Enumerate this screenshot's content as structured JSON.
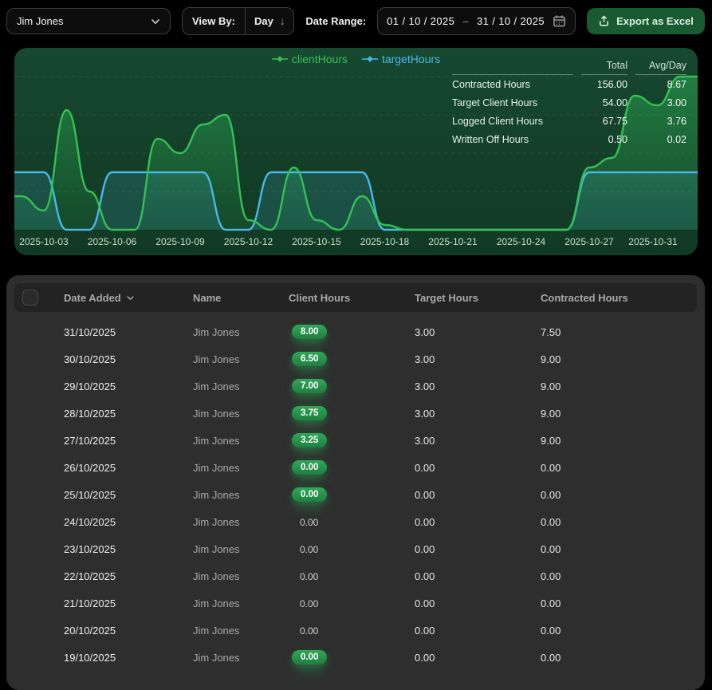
{
  "toolbar": {
    "person_select": {
      "value": "Jim Jones"
    },
    "view_by_label": "View By:",
    "view_by_value": "Day",
    "date_range_label": "Date Range:",
    "date_range_start": "01 / 10 / 2025",
    "date_range_separator": "–",
    "date_range_end": "31 / 10 / 2025",
    "export_button_label": "Export as Excel"
  },
  "colors": {
    "client_hours_green": "#34c155",
    "target_hours_blue": "#49b8e8",
    "chart_panel_green": "#133f28",
    "badge_green": "#2b9d50",
    "export_button_green": "#1a5a32"
  },
  "chart": {
    "stats": {
      "headers": [
        "Total",
        "Avg/Day"
      ],
      "rows": [
        [
          "Contracted Hours",
          "156.00",
          "8.67"
        ],
        [
          "Target Client Hours",
          "54.00",
          "3.00"
        ],
        [
          "Logged Client Hours",
          "67.75",
          "3.76"
        ],
        [
          "Written Off Hours",
          "0.50",
          "0.02"
        ]
      ]
    }
  },
  "chart_data": {
    "type": "area",
    "title": "",
    "x": [
      "2025-10-01",
      "2025-10-02",
      "2025-10-03",
      "2025-10-04",
      "2025-10-05",
      "2025-10-06",
      "2025-10-07",
      "2025-10-08",
      "2025-10-09",
      "2025-10-10",
      "2025-10-11",
      "2025-10-12",
      "2025-10-13",
      "2025-10-14",
      "2025-10-15",
      "2025-10-16",
      "2025-10-17",
      "2025-10-18",
      "2025-10-19",
      "2025-10-20",
      "2025-10-21",
      "2025-10-22",
      "2025-10-23",
      "2025-10-24",
      "2025-10-25",
      "2025-10-26",
      "2025-10-27",
      "2025-10-28",
      "2025-10-29",
      "2025-10-30",
      "2025-10-31"
    ],
    "series": [
      {
        "name": "clientHours",
        "color": "#34c155",
        "values": [
          1.75,
          1.75,
          1.0,
          6.25,
          2.0,
          0,
          0,
          4.75,
          4.0,
          5.5,
          6.0,
          0.5,
          0,
          3.25,
          0.5,
          0,
          1.75,
          0.25,
          0,
          0,
          0,
          0,
          0,
          0,
          0,
          0,
          3.25,
          3.75,
          7.0,
          6.5,
          8.0
        ]
      },
      {
        "name": "targetHours",
        "color": "#49b8e8",
        "values": [
          3,
          3,
          3,
          0,
          0,
          3,
          3,
          3,
          3,
          3,
          0,
          0,
          3,
          3,
          3,
          3,
          3,
          0,
          0,
          0,
          0,
          0,
          0,
          0,
          0,
          0,
          3,
          3,
          3,
          3,
          3
        ]
      }
    ],
    "x_ticks": [
      "2025-10-03",
      "2025-10-06",
      "2025-10-09",
      "2025-10-12",
      "2025-10-15",
      "2025-10-18",
      "2025-10-21",
      "2025-10-24",
      "2025-10-27",
      "2025-10-31"
    ],
    "ylim": [
      0,
      9.5
    ],
    "grid": "dashed-horizontal",
    "legend_position": "top-center"
  },
  "table": {
    "columns": [
      "Date Added",
      "Name",
      "Client Hours",
      "Target Hours",
      "Contracted Hours"
    ],
    "sort_column": "Date Added",
    "rows": [
      {
        "date": "31/10/2025",
        "name": "Jim Jones",
        "client_hours": "8.00",
        "badge": true,
        "target_hours": "3.00",
        "contracted_hours": "7.50"
      },
      {
        "date": "30/10/2025",
        "name": "Jim Jones",
        "client_hours": "6.50",
        "badge": true,
        "target_hours": "3.00",
        "contracted_hours": "9.00"
      },
      {
        "date": "29/10/2025",
        "name": "Jim Jones",
        "client_hours": "7.00",
        "badge": true,
        "target_hours": "3.00",
        "contracted_hours": "9.00"
      },
      {
        "date": "28/10/2025",
        "name": "Jim Jones",
        "client_hours": "3.75",
        "badge": true,
        "target_hours": "3.00",
        "contracted_hours": "9.00"
      },
      {
        "date": "27/10/2025",
        "name": "Jim Jones",
        "client_hours": "3.25",
        "badge": true,
        "target_hours": "3.00",
        "contracted_hours": "9.00"
      },
      {
        "date": "26/10/2025",
        "name": "Jim Jones",
        "client_hours": "0.00",
        "badge": true,
        "target_hours": "0.00",
        "contracted_hours": "0.00"
      },
      {
        "date": "25/10/2025",
        "name": "Jim Jones",
        "client_hours": "0.00",
        "badge": true,
        "target_hours": "0.00",
        "contracted_hours": "0.00"
      },
      {
        "date": "24/10/2025",
        "name": "Jim Jones",
        "client_hours": "0.00",
        "badge": false,
        "target_hours": "0.00",
        "contracted_hours": "0.00"
      },
      {
        "date": "23/10/2025",
        "name": "Jim Jones",
        "client_hours": "0.00",
        "badge": false,
        "target_hours": "0.00",
        "contracted_hours": "0.00"
      },
      {
        "date": "22/10/2025",
        "name": "Jim Jones",
        "client_hours": "0.00",
        "badge": false,
        "target_hours": "0.00",
        "contracted_hours": "0.00"
      },
      {
        "date": "21/10/2025",
        "name": "Jim Jones",
        "client_hours": "0.00",
        "badge": false,
        "target_hours": "0.00",
        "contracted_hours": "0.00"
      },
      {
        "date": "20/10/2025",
        "name": "Jim Jones",
        "client_hours": "0.00",
        "badge": false,
        "target_hours": "0.00",
        "contracted_hours": "0.00"
      },
      {
        "date": "19/10/2025",
        "name": "Jim Jones",
        "client_hours": "0.00",
        "badge": true,
        "target_hours": "0.00",
        "contracted_hours": "0.00"
      }
    ]
  }
}
